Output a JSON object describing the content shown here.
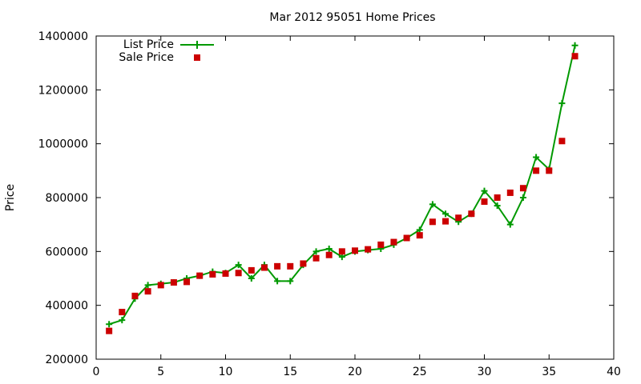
{
  "chart_data": {
    "type": "line",
    "title": "Mar 2012 95051 Home Prices",
    "xlabel": "",
    "ylabel": "Price",
    "xlim": [
      0,
      40
    ],
    "ylim": [
      200000,
      1400000
    ],
    "xticks": [
      0,
      5,
      10,
      15,
      20,
      25,
      30,
      35,
      40
    ],
    "yticks": [
      200000,
      400000,
      600000,
      800000,
      1000000,
      1200000,
      1400000
    ],
    "grid": false,
    "legend_position": "top-left",
    "series": [
      {
        "name": "List Price",
        "style": "line-with-plus-markers",
        "color": "#009900",
        "x": [
          1,
          2,
          3,
          4,
          5,
          6,
          7,
          8,
          9,
          10,
          11,
          12,
          13,
          14,
          15,
          16,
          17,
          18,
          19,
          20,
          21,
          22,
          23,
          24,
          25,
          26,
          27,
          28,
          29,
          30,
          31,
          32,
          33,
          34,
          35,
          36,
          37
        ],
        "y": [
          330000,
          345000,
          425000,
          475000,
          480000,
          485000,
          500000,
          510000,
          525000,
          520000,
          550000,
          500000,
          550000,
          490000,
          490000,
          550000,
          600000,
          610000,
          580000,
          600000,
          605000,
          610000,
          625000,
          650000,
          680000,
          775000,
          740000,
          710000,
          740000,
          825000,
          770000,
          700000,
          800000,
          950000,
          905000,
          1150000,
          1365000
        ]
      },
      {
        "name": "Sale Price",
        "style": "square-markers",
        "color": "#cc0000",
        "x": [
          1,
          2,
          3,
          4,
          5,
          6,
          7,
          8,
          9,
          10,
          11,
          12,
          13,
          14,
          15,
          16,
          17,
          18,
          19,
          20,
          21,
          22,
          23,
          24,
          25,
          26,
          27,
          28,
          29,
          30,
          31,
          32,
          33,
          34,
          35,
          36,
          37
        ],
        "y": [
          305000,
          375000,
          435000,
          452000,
          475000,
          485000,
          487000,
          510000,
          515000,
          518000,
          520000,
          530000,
          540000,
          545000,
          545000,
          555000,
          575000,
          587000,
          600000,
          603000,
          608000,
          625000,
          635000,
          650000,
          660000,
          710000,
          712000,
          725000,
          740000,
          785000,
          800000,
          818000,
          835000,
          900000,
          900000,
          1010000,
          1325000
        ]
      }
    ]
  }
}
